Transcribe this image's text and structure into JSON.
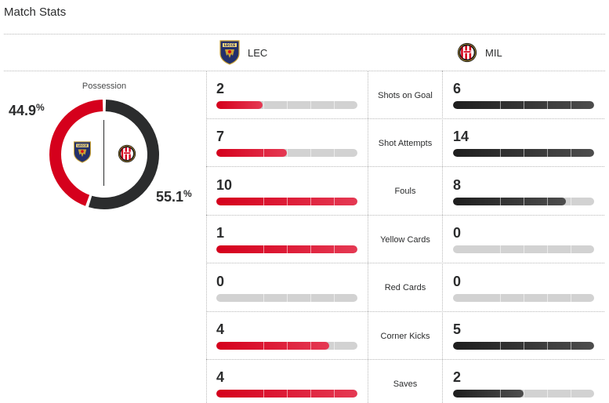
{
  "title": "Match Stats",
  "teams": {
    "home": {
      "abbr": "LEC",
      "color": "#d5001c"
    },
    "away": {
      "abbr": "MIL",
      "color": "#2b2c2d"
    }
  },
  "possession": {
    "label": "Possession",
    "home_value": "44.9",
    "away_value": "55.1",
    "unit": "%",
    "home_fraction": 0.449,
    "away_fraction": 0.551
  },
  "stats": [
    {
      "label": "Shots on Goal",
      "home": "2",
      "away": "6",
      "home_fill": 0.33,
      "away_fill": 1.0
    },
    {
      "label": "Shot Attempts",
      "home": "7",
      "away": "14",
      "home_fill": 0.5,
      "away_fill": 1.0
    },
    {
      "label": "Fouls",
      "home": "10",
      "away": "8",
      "home_fill": 1.0,
      "away_fill": 0.8
    },
    {
      "label": "Yellow Cards",
      "home": "1",
      "away": "0",
      "home_fill": 1.0,
      "away_fill": 0.0
    },
    {
      "label": "Red Cards",
      "home": "0",
      "away": "0",
      "home_fill": 0.0,
      "away_fill": 0.0
    },
    {
      "label": "Corner Kicks",
      "home": "4",
      "away": "5",
      "home_fill": 0.8,
      "away_fill": 1.0
    },
    {
      "label": "Saves",
      "home": "4",
      "away": "2",
      "home_fill": 1.0,
      "away_fill": 0.5
    }
  ]
}
